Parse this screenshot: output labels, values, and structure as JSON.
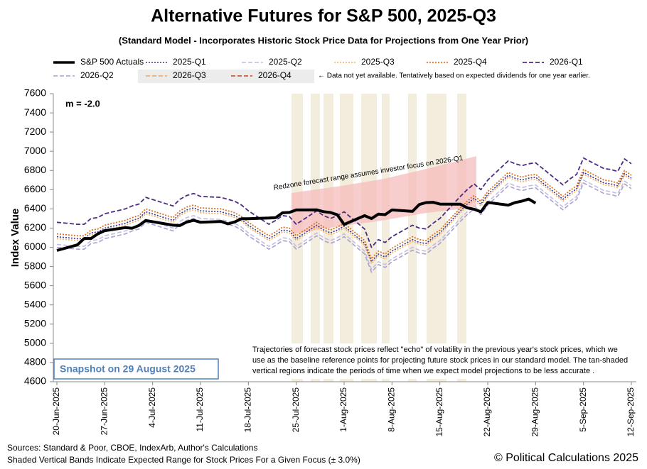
{
  "chart_data": {
    "type": "line",
    "title": "Alternative Futures for S&P 500, 2025-Q3",
    "subtitle": "(Standard Model - Incorporates Historic Stock Price Data for Projections from One Year Prior)",
    "y_label": "Index Value",
    "legend_note": "← Data not yet available.  Tentatively based on expected dividends for one year earlier.",
    "slope_label": "m = -2.0",
    "redzone_label": "Redzone forecast range assumes investor focus on 2026-Q1",
    "snapshot": "Snapshot on 29 August 2025",
    "note_lines": [
      "Trajectories of forecast stock prices reflect \"echo\" of volatility in  the previous year's stock prices, which we",
      "use as the baseline reference points for projecting future stock prices in our standard model.  The tan-shaded",
      "vertical regions indicate the periods of time when we expect model projections to be less accurate ."
    ],
    "sources": "Sources: Standard & Poor, CBOE, IndexArb, Author's Calculations",
    "bands_note": "Shaded Vertical Bands Indicate Expected Range for Stock Prices For a Given Focus (± 3.0%)",
    "copyright": "© Political Calculations 2025",
    "grid": false,
    "xlim": [
      "2025-06-20",
      "2025-09-12"
    ],
    "xticks": [
      {
        "value": "2025-06-20",
        "label": "20-Jun-2025"
      },
      {
        "value": "2025-06-27",
        "label": "27-Jun-2025"
      },
      {
        "value": "2025-07-04",
        "label": "4-Jul-2025"
      },
      {
        "value": "2025-07-11",
        "label": "11-Jul-2025"
      },
      {
        "value": "2025-07-18",
        "label": "18-Jul-2025"
      },
      {
        "value": "2025-07-25",
        "label": "25-Jul-2025"
      },
      {
        "value": "2025-08-01",
        "label": "1-Aug-2025"
      },
      {
        "value": "2025-08-08",
        "label": "8-Aug-2025"
      },
      {
        "value": "2025-08-15",
        "label": "15-Aug-2025"
      },
      {
        "value": "2025-08-22",
        "label": "22-Aug-2025"
      },
      {
        "value": "2025-08-29",
        "label": "29-Aug-2025"
      },
      {
        "value": "2025-09-05",
        "label": "5-Sep-2025"
      },
      {
        "value": "2025-09-12",
        "label": "12-Sep-2025"
      }
    ],
    "ylim": [
      4600,
      7600
    ],
    "yticks": [
      4600,
      4800,
      5000,
      5200,
      5400,
      5600,
      5800,
      6000,
      6200,
      6400,
      6600,
      6800,
      7000,
      7200,
      7400,
      7600
    ],
    "x": [
      "2025-06-20",
      "2025-06-23",
      "2025-06-24",
      "2025-06-25",
      "2025-06-26",
      "2025-06-27",
      "2025-06-30",
      "2025-07-01",
      "2025-07-02",
      "2025-07-03",
      "2025-07-07",
      "2025-07-08",
      "2025-07-09",
      "2025-07-10",
      "2025-07-11",
      "2025-07-14",
      "2025-07-15",
      "2025-07-16",
      "2025-07-17",
      "2025-07-18",
      "2025-07-21",
      "2025-07-22",
      "2025-07-23",
      "2025-07-24",
      "2025-07-25",
      "2025-07-28",
      "2025-07-29",
      "2025-07-30",
      "2025-07-31",
      "2025-08-01",
      "2025-08-04",
      "2025-08-05",
      "2025-08-06",
      "2025-08-07",
      "2025-08-08",
      "2025-08-11",
      "2025-08-12",
      "2025-08-13",
      "2025-08-14",
      "2025-08-15",
      "2025-08-18",
      "2025-08-19",
      "2025-08-20",
      "2025-08-21",
      "2025-08-22",
      "2025-08-25",
      "2025-08-26",
      "2025-08-27",
      "2025-08-28",
      "2025-08-29",
      "2025-09-02",
      "2025-09-03",
      "2025-09-04",
      "2025-09-05",
      "2025-09-08",
      "2025-09-09",
      "2025-09-10",
      "2025-09-11",
      "2025-09-12"
    ],
    "series": [
      {
        "name": "2026-Q2",
        "color": "#a9a1cf",
        "style": "dashed",
        "width": 1.6,
        "values": [
          6000,
          5980,
          5980,
          6040,
          6050,
          6090,
          6140,
          6170,
          6190,
          6260,
          6170,
          6240,
          6280,
          6300,
          6270,
          6260,
          6240,
          6220,
          6180,
          6120,
          5980,
          6020,
          6070,
          6060,
          5980,
          6120,
          6070,
          6040,
          6070,
          6110,
          5930,
          5740,
          5820,
          5790,
          5850,
          5970,
          5940,
          5930,
          5990,
          6040,
          6270,
          6340,
          6400,
          6340,
          6440,
          6640,
          6610,
          6590,
          6610,
          6620,
          6390,
          6450,
          6500,
          6670,
          6560,
          6550,
          6530,
          6660,
          6610
        ]
      },
      {
        "name": "2025-Q2",
        "color": "#c4bde3",
        "style": "dashed",
        "width": 1.6,
        "values": [
          6030,
          6010,
          6010,
          6070,
          6080,
          6120,
          6170,
          6200,
          6220,
          6290,
          6200,
          6270,
          6310,
          6330,
          6300,
          6290,
          6270,
          6250,
          6210,
          6150,
          6010,
          6050,
          6100,
          6090,
          6010,
          6150,
          6100,
          6070,
          6100,
          6140,
          5960,
          5770,
          5850,
          5820,
          5880,
          6000,
          5970,
          5960,
          6020,
          6070,
          6300,
          6370,
          6430,
          6370,
          6470,
          6670,
          6640,
          6620,
          6640,
          6650,
          6420,
          6480,
          6530,
          6700,
          6590,
          6580,
          6560,
          6690,
          6640
        ]
      },
      {
        "name": "2025-Q3",
        "color": "#f5b05e",
        "style": "dotted",
        "width": 1.6,
        "values": [
          6090,
          6070,
          6070,
          6130,
          6140,
          6180,
          6230,
          6260,
          6280,
          6350,
          6260,
          6330,
          6370,
          6390,
          6360,
          6350,
          6330,
          6310,
          6270,
          6210,
          6070,
          6110,
          6160,
          6150,
          6070,
          6210,
          6160,
          6130,
          6160,
          6200,
          6020,
          5830,
          5910,
          5880,
          5940,
          6060,
          6030,
          6020,
          6080,
          6130,
          6360,
          6430,
          6490,
          6430,
          6530,
          6730,
          6700,
          6680,
          6700,
          6710,
          6480,
          6540,
          6590,
          6760,
          6650,
          6640,
          6620,
          6750,
          6700
        ]
      },
      {
        "name": "2025-Q1",
        "color": "#35358f",
        "style": "dotted",
        "width": 1.6,
        "values": [
          6110,
          6090,
          6090,
          6150,
          6160,
          6200,
          6250,
          6280,
          6300,
          6370,
          6280,
          6350,
          6390,
          6410,
          6380,
          6370,
          6350,
          6330,
          6290,
          6230,
          6090,
          6130,
          6180,
          6170,
          6090,
          6230,
          6180,
          6150,
          6180,
          6220,
          6040,
          5850,
          5930,
          5900,
          5960,
          6080,
          6050,
          6040,
          6100,
          6150,
          6380,
          6450,
          6510,
          6450,
          6550,
          6750,
          6720,
          6700,
          6720,
          6730,
          6500,
          6560,
          6610,
          6780,
          6670,
          6660,
          6640,
          6770,
          6720
        ]
      },
      {
        "name": "2025-Q4",
        "color": "#e0701c",
        "style": "dotted",
        "width": 1.8,
        "values": [
          6140,
          6120,
          6120,
          6180,
          6190,
          6230,
          6280,
          6310,
          6330,
          6400,
          6310,
          6380,
          6420,
          6440,
          6410,
          6400,
          6380,
          6360,
          6320,
          6260,
          6120,
          6160,
          6210,
          6200,
          6120,
          6260,
          6210,
          6180,
          6210,
          6250,
          6070,
          5880,
          5960,
          5930,
          5990,
          6110,
          6080,
          6070,
          6130,
          6180,
          6410,
          6480,
          6540,
          6480,
          6580,
          6780,
          6750,
          6730,
          6750,
          6760,
          6530,
          6590,
          6640,
          6810,
          6700,
          6690,
          6670,
          6800,
          6750
        ]
      },
      {
        "name": "2026-Q1",
        "color": "#4a2c82",
        "style": "dashed",
        "width": 1.8,
        "values": [
          6260,
          6240,
          6240,
          6300,
          6310,
          6350,
          6400,
          6430,
          6450,
          6520,
          6430,
          6500,
          6540,
          6560,
          6530,
          6520,
          6500,
          6480,
          6440,
          6380,
          6240,
          6280,
          6330,
          6320,
          6240,
          6380,
          6330,
          6300,
          6330,
          6370,
          6190,
          6000,
          6080,
          6050,
          6110,
          6230,
          6200,
          6190,
          6250,
          6300,
          6530,
          6600,
          6660,
          6600,
          6700,
          6900,
          6870,
          6850,
          6870,
          6880,
          6650,
          6710,
          6760,
          6930,
          6820,
          6810,
          6790,
          6920,
          6870
        ]
      },
      {
        "name": "2026-Q3",
        "color": "#f4a25a",
        "style": "dashed",
        "width": 1.6
      },
      {
        "name": "2026-Q4",
        "color": "#c2461a",
        "style": "dashed",
        "width": 1.6
      },
      {
        "name": "S&P 500 Actuals",
        "color": "#000000",
        "style": "solid",
        "width": 4,
        "values": [
          5967,
          6025,
          6092,
          6092,
          6141,
          6173,
          6205,
          6198,
          6227,
          6279,
          6230,
          6226,
          6263,
          6281,
          6260,
          6269,
          6244,
          6264,
          6297,
          6297,
          6305,
          6309,
          6359,
          6363,
          6389,
          6390,
          6371,
          6362,
          6339,
          6238,
          6330,
          6299,
          6345,
          6340,
          6389,
          6374,
          6446,
          6466,
          6469,
          6450,
          6449,
          6411,
          6396,
          6370,
          6467,
          6439,
          6466,
          6481,
          6502,
          6460,
          null,
          null,
          null,
          null,
          null,
          null,
          null,
          null,
          null
        ]
      }
    ]
  }
}
